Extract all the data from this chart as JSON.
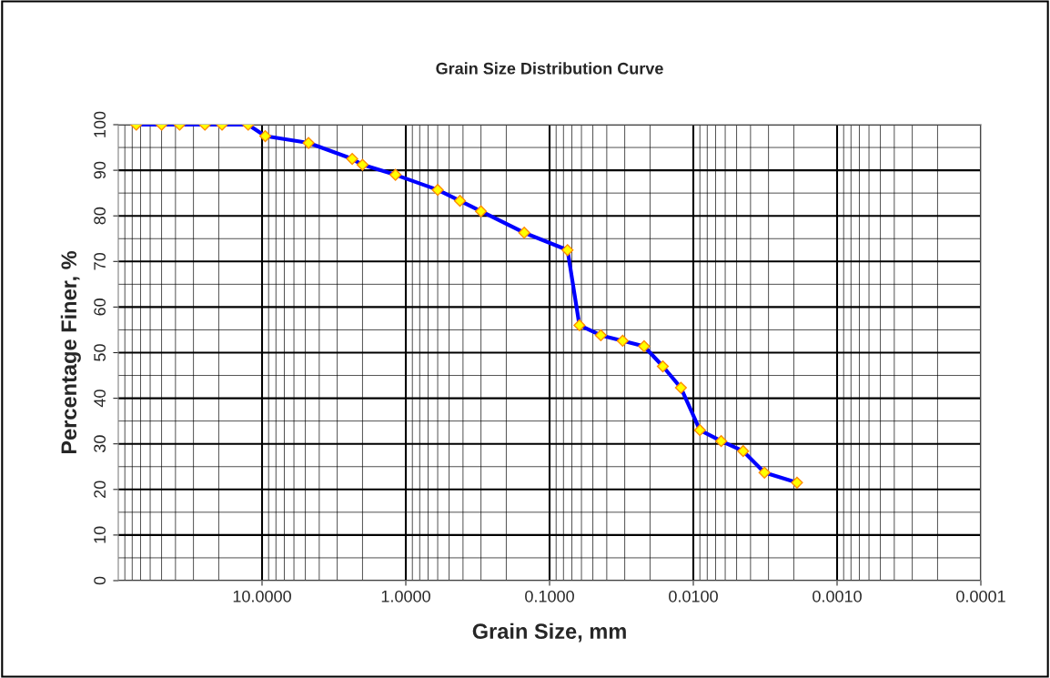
{
  "chart_data": {
    "type": "line",
    "title": "Grain Size Distribution Curve",
    "xlabel": "Grain Size, mm",
    "ylabel": "Percentage Finer, %",
    "log": "x",
    "marker": "diamond",
    "grid": true,
    "x": [
      75,
      50,
      37.5,
      25,
      19,
      12.5,
      9.5,
      4.75,
      2.36,
      2,
      1.18,
      0.6,
      0.42,
      0.3,
      0.15,
      0.075,
      0.062,
      0.044,
      0.031,
      0.022,
      0.0163,
      0.0122,
      0.009,
      0.0064,
      0.0045,
      0.0032,
      0.0019
    ],
    "series": [
      {
        "color": "#0000ff",
        "values": [
          100,
          100,
          100,
          100,
          100,
          100,
          97.5,
          96,
          92.5,
          91.2,
          89,
          85.7,
          83.3,
          81,
          76.3,
          72.5,
          56,
          53.8,
          52.6,
          51.4,
          47,
          42.3,
          33,
          30.6,
          28.4,
          23.7,
          21.5
        ]
      }
    ],
    "xlim": [
      100,
      0.0001
    ],
    "xticks": [
      {
        "value": 10,
        "label": "10.0000"
      },
      {
        "value": 1,
        "label": "1.0000"
      },
      {
        "value": 0.1,
        "label": "0.1000"
      },
      {
        "value": 0.01,
        "label": "0.0100"
      },
      {
        "value": 0.001,
        "label": "0.0010"
      },
      {
        "value": 0.0001,
        "label": "0.0001"
      }
    ],
    "ylim": [
      0,
      100
    ],
    "yticks": [
      0,
      10,
      20,
      30,
      40,
      50,
      60,
      70,
      80,
      90,
      100
    ]
  }
}
